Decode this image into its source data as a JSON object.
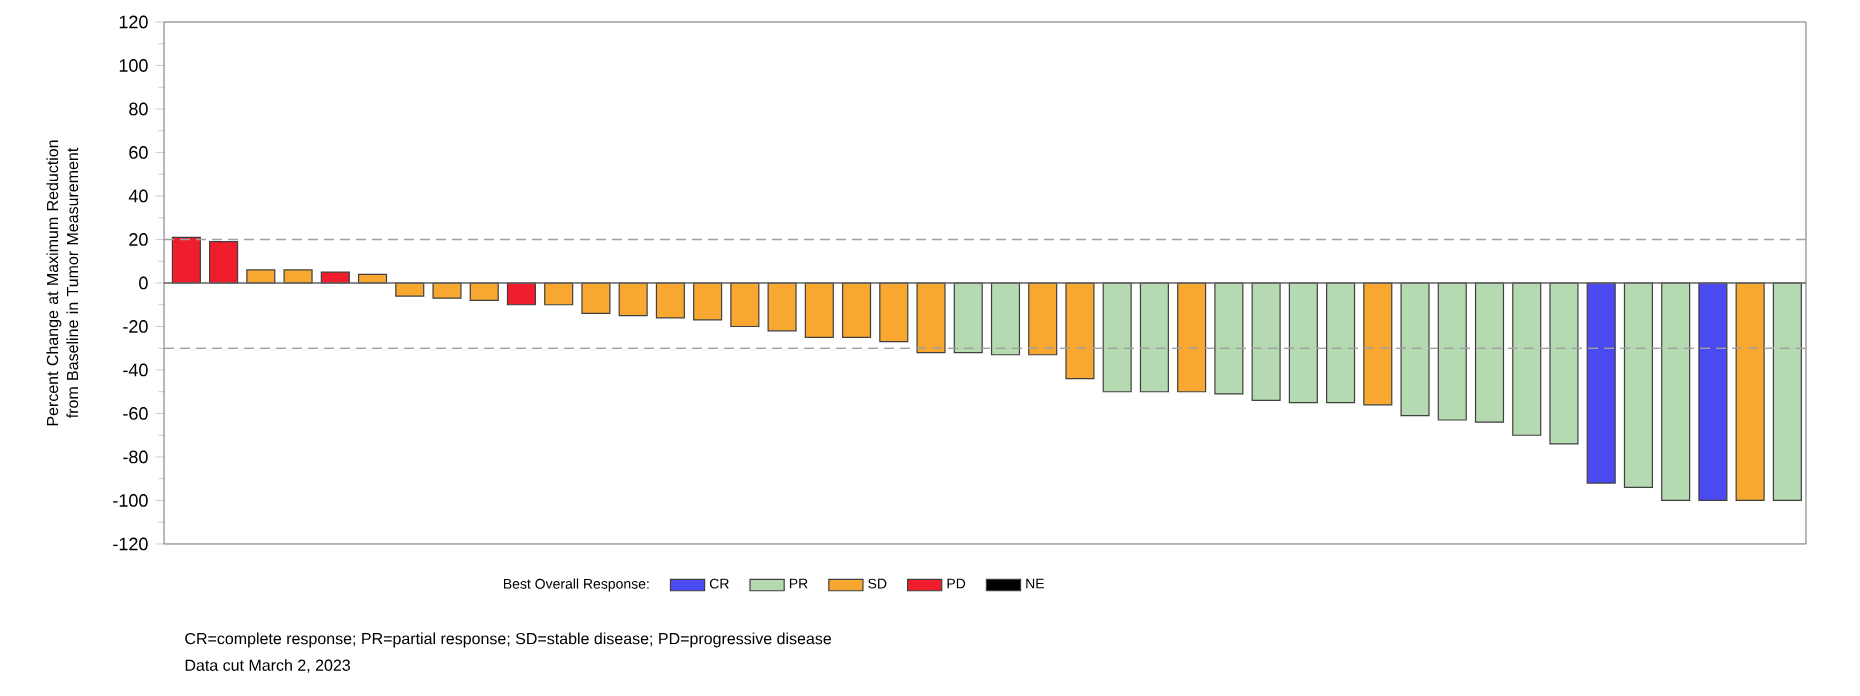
{
  "chart_data": {
    "type": "bar",
    "ylabel": "Percent Change at Maximum Reduction from Baseline in Tumor Measurement",
    "categories": [
      null,
      null,
      null,
      null,
      null,
      null,
      null,
      null,
      null,
      null,
      null,
      null,
      null,
      null,
      null,
      null,
      null,
      null,
      null,
      null,
      null,
      null,
      null,
      null,
      null,
      null,
      null,
      null,
      null,
      null,
      null,
      null,
      null,
      null,
      null,
      null,
      null,
      null,
      null,
      null,
      null,
      null,
      null,
      null
    ],
    "series": [
      {
        "name": "CR",
        "color": "#4a4af0",
        "values": [
          null,
          null,
          null,
          null,
          null,
          null,
          null,
          null,
          null,
          null,
          null,
          null,
          null,
          null,
          null,
          null,
          null,
          null,
          null,
          null,
          null,
          null,
          null,
          null,
          null,
          null,
          null,
          null,
          null,
          null,
          null,
          null,
          null,
          null,
          null,
          null,
          null,
          null,
          -92,
          null,
          null,
          -100,
          null,
          null
        ]
      },
      {
        "name": "PR",
        "color": "#b5d9b0",
        "values": [
          null,
          null,
          null,
          null,
          null,
          null,
          null,
          null,
          null,
          null,
          null,
          null,
          null,
          null,
          null,
          null,
          null,
          null,
          null,
          null,
          null,
          -32,
          -33,
          null,
          null,
          -50,
          -50,
          null,
          -51,
          -54,
          -55,
          -55,
          null,
          -61,
          -63,
          -64,
          -70,
          -74,
          null,
          -94,
          -100,
          null,
          null,
          -100
        ]
      },
      {
        "name": "SD",
        "color": "#f8a830",
        "values": [
          null,
          null,
          6,
          6,
          null,
          4,
          -6,
          -7,
          -8,
          null,
          -10,
          -14,
          -15,
          -16,
          -17,
          -20,
          -22,
          -25,
          -25,
          -27,
          -32,
          null,
          null,
          -33,
          -44,
          null,
          null,
          -50,
          null,
          null,
          null,
          null,
          -56,
          null,
          null,
          null,
          null,
          null,
          null,
          null,
          null,
          null,
          -100,
          null
        ]
      },
      {
        "name": "PD",
        "color": "#f01e2c",
        "values": [
          21,
          19,
          null,
          null,
          5,
          null,
          null,
          null,
          null,
          -10,
          null,
          null,
          null,
          null,
          null,
          null,
          null,
          null,
          null,
          null,
          null,
          null,
          null,
          null,
          null,
          null,
          null,
          null,
          null,
          null,
          null,
          null,
          null,
          null,
          null,
          null,
          null,
          null,
          null,
          null,
          null,
          null,
          null,
          null
        ]
      },
      {
        "name": "NE",
        "color": "#000000",
        "values": [
          null,
          null,
          null,
          null,
          null,
          null,
          null,
          null,
          null,
          null,
          null,
          null,
          null,
          null,
          null,
          null,
          null,
          null,
          null,
          null,
          null,
          null,
          null,
          null,
          null,
          null,
          null,
          null,
          null,
          null,
          null,
          null,
          null,
          null,
          null,
          null,
          null,
          null,
          null,
          null,
          null,
          null,
          null,
          null
        ]
      }
    ],
    "ylim": [
      -120,
      120
    ],
    "yticks": [
      -120,
      -100,
      -80,
      -60,
      -40,
      -20,
      0,
      20,
      40,
      60,
      80,
      100,
      120
    ],
    "ref_lines": [
      {
        "axis": "y",
        "value": 20,
        "color": "#a0a0a0",
        "line_style": "dashed"
      },
      {
        "axis": "y",
        "value": -30,
        "color": "#a0a0a0",
        "line_style": "dashed"
      },
      {
        "axis": "y",
        "value": 0,
        "color": "#606060",
        "line_style": "solid"
      }
    ],
    "legend": "bottom",
    "legend_title": "Best Overall Response:",
    "annotations": [
      "CR=complete response; PR=partial response; SD=stable disease; PD=progressive disease",
      "Data cut March 2, 2023"
    ]
  }
}
